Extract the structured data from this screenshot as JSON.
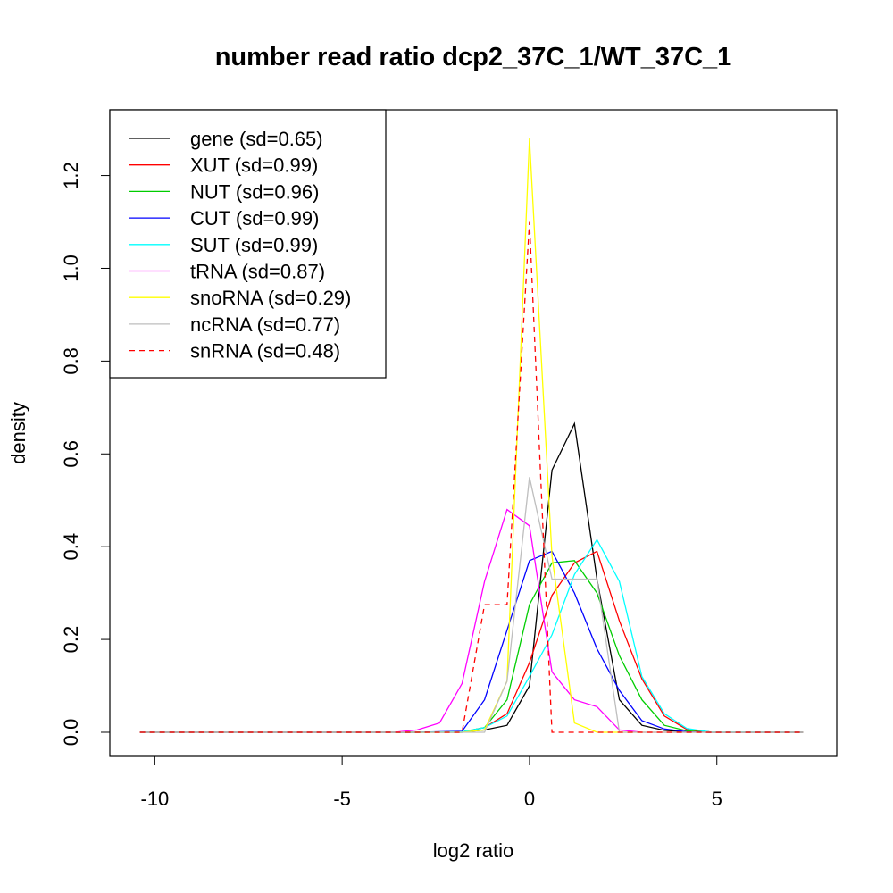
{
  "chart_data": {
    "type": "line",
    "title": "number read ratio dcp2_37C_1/WT_37C_1",
    "xlabel": "log2 ratio",
    "ylabel": "density",
    "xlim": [
      -11.2,
      8.2
    ],
    "ylim": [
      -0.052,
      1.3416
    ],
    "x_ticks": [
      -10,
      -5,
      0,
      5
    ],
    "x_tick_labels": [
      "-10",
      "-5",
      "0",
      "5"
    ],
    "y_ticks": [
      0.0,
      0.2,
      0.4,
      0.6,
      0.8,
      1.0,
      1.2
    ],
    "y_tick_labels": [
      "0.0",
      "0.2",
      "0.4",
      "0.6",
      "0.8",
      "1.0",
      "1.2"
    ],
    "legend_position": "top-left",
    "x": [
      -10.4,
      -9.8,
      -9.2,
      -8.6,
      -8.0,
      -7.4,
      -6.8,
      -6.2,
      -5.6,
      -5.0,
      -4.4,
      -3.8,
      -3.2,
      -2.6,
      -2.0,
      -1.4,
      -0.8,
      -0.2,
      0.4,
      1.0,
      1.6,
      2.2,
      2.8,
      3.4,
      4.0,
      4.6,
      5.2,
      5.8,
      6.4,
      7.0
    ],
    "series": [
      {
        "name": "gene (sd=0.65)",
        "color": "#000000",
        "dash": "solid",
        "x": [
          -10.4,
          -3.0,
          -1.8,
          -1.2,
          -0.6,
          0.0,
          0.6,
          1.2,
          1.8,
          2.4,
          3.0,
          3.6,
          4.2,
          4.8,
          7.3
        ],
        "values": [
          0,
          0,
          0,
          0.005,
          0.015,
          0.1,
          0.565,
          0.665,
          0.33,
          0.07,
          0.015,
          0.004,
          0.001,
          0,
          0
        ]
      },
      {
        "name": "XUT (sd=0.99)",
        "color": "#ff0000",
        "dash": "solid",
        "x": [
          -10.4,
          -3.0,
          -1.8,
          -1.2,
          -0.6,
          0.0,
          0.6,
          1.2,
          1.8,
          2.4,
          3.0,
          3.6,
          4.2,
          4.8,
          7.3
        ],
        "values": [
          0,
          0,
          0.001,
          0.01,
          0.04,
          0.15,
          0.295,
          0.365,
          0.39,
          0.24,
          0.115,
          0.035,
          0.006,
          0.001,
          0
        ]
      },
      {
        "name": "NUT (sd=0.96)",
        "color": "#00cd00",
        "dash": "solid",
        "x": [
          -10.4,
          -3.0,
          -1.8,
          -1.2,
          -0.6,
          0.0,
          0.6,
          1.2,
          1.8,
          2.4,
          3.0,
          3.6,
          4.2,
          4.8,
          7.3
        ],
        "values": [
          0,
          0,
          0.001,
          0.01,
          0.07,
          0.275,
          0.365,
          0.37,
          0.3,
          0.165,
          0.07,
          0.015,
          0.003,
          0,
          0
        ]
      },
      {
        "name": "CUT (sd=0.99)",
        "color": "#0000ff",
        "dash": "solid",
        "x": [
          -10.4,
          -3.0,
          -1.8,
          -1.2,
          -0.6,
          0.0,
          0.6,
          1.2,
          1.8,
          2.4,
          3.0,
          3.6,
          4.2,
          4.8,
          7.3
        ],
        "values": [
          0,
          0,
          0.002,
          0.07,
          0.22,
          0.37,
          0.39,
          0.3,
          0.18,
          0.09,
          0.025,
          0.007,
          0.001,
          0,
          0
        ]
      },
      {
        "name": "SUT (sd=0.99)",
        "color": "#00ffff",
        "dash": "solid",
        "x": [
          -10.4,
          -3.0,
          -1.8,
          -1.2,
          -0.6,
          0.0,
          0.6,
          1.2,
          1.8,
          2.4,
          3.0,
          3.6,
          4.2,
          4.8,
          7.3
        ],
        "values": [
          0,
          0,
          0.001,
          0.01,
          0.035,
          0.12,
          0.21,
          0.34,
          0.415,
          0.325,
          0.12,
          0.04,
          0.008,
          0.001,
          0
        ]
      },
      {
        "name": "tRNA (sd=0.87)",
        "color": "#ff00ff",
        "dash": "solid",
        "x": [
          -10.4,
          -3.6,
          -3.0,
          -2.4,
          -1.8,
          -1.2,
          -0.6,
          0.0,
          0.6,
          1.2,
          1.8,
          2.4,
          3.0,
          7.3
        ],
        "values": [
          0,
          0,
          0.005,
          0.02,
          0.105,
          0.325,
          0.48,
          0.445,
          0.13,
          0.07,
          0.055,
          0.005,
          0,
          0
        ]
      },
      {
        "name": "snoRNA (sd=0.29)",
        "color": "#ffff00",
        "dash": "solid",
        "x": [
          -10.4,
          -1.8,
          -1.2,
          -0.6,
          0.0,
          0.6,
          1.2,
          1.8,
          7.3
        ],
        "values": [
          0,
          0,
          0.005,
          0.11,
          1.28,
          0.38,
          0.02,
          0,
          0
        ]
      },
      {
        "name": "ncRNA (sd=0.77)",
        "color": "#bebebe",
        "dash": "solid",
        "x": [
          -10.4,
          -1.8,
          -1.2,
          -0.6,
          0.0,
          0.6,
          1.2,
          1.8,
          2.4,
          3.0,
          7.3
        ],
        "values": [
          0,
          0,
          0,
          0.11,
          0.55,
          0.33,
          0.33,
          0.33,
          0.0,
          0,
          0
        ]
      },
      {
        "name": "snRNA (sd=0.48)",
        "color": "#ff0000",
        "dash": "dashed",
        "x": [
          -10.4,
          -1.8,
          -1.2,
          -0.6,
          0.0,
          0.6,
          7.3
        ],
        "values": [
          0,
          0,
          0.275,
          0.275,
          1.1,
          0,
          0
        ]
      }
    ]
  }
}
